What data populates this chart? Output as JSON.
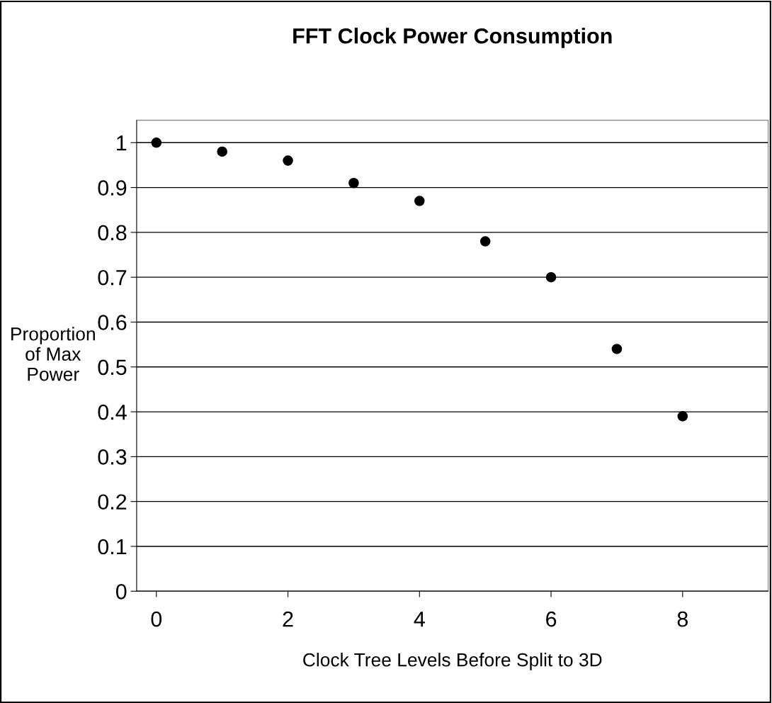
{
  "chart_data": {
    "type": "scatter",
    "title": "FFT Clock Power Consumption",
    "xlabel": "Clock Tree Levels Before Split to 3D",
    "ylabel": "Proportion\nof Max\nPower",
    "x": [
      0,
      1,
      2,
      3,
      4,
      5,
      6,
      7,
      8
    ],
    "series": [
      {
        "color": "#000000",
        "values": [
          1.0,
          0.98,
          0.96,
          0.91,
          0.87,
          0.78,
          0.7,
          0.54,
          0.39
        ]
      }
    ],
    "xlim": [
      -0.3,
      9.3
    ],
    "xticks": [
      0,
      2,
      4,
      6,
      8
    ],
    "ylim": [
      0,
      1.05
    ],
    "yticks": [
      0,
      0.1,
      0.2,
      0.3,
      0.4,
      0.5,
      0.6,
      0.7,
      0.8,
      0.9,
      1
    ],
    "grid": "y",
    "marker": "circle",
    "legend": false
  }
}
